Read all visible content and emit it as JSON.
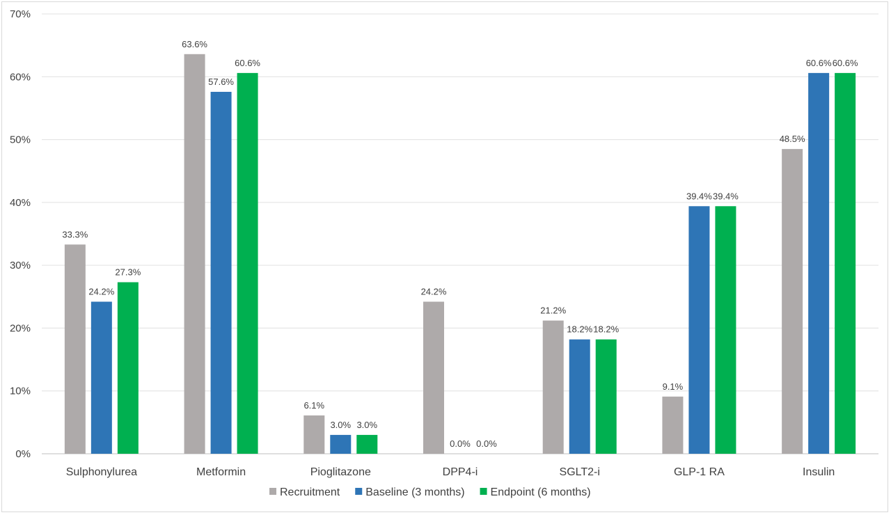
{
  "chart_data": {
    "type": "bar",
    "title": "",
    "xlabel": "",
    "ylabel": "",
    "ylim": [
      0,
      70
    ],
    "y_ticks": [
      "0%",
      "10%",
      "20%",
      "30%",
      "40%",
      "50%",
      "60%",
      "70%"
    ],
    "y_tick_values": [
      0,
      10,
      20,
      30,
      40,
      50,
      60,
      70
    ],
    "grid": true,
    "legend_position": "bottom",
    "categories": [
      "Sulphonylurea",
      "Metformin",
      "Pioglitazone",
      "DPP4-i",
      "SGLT2-i",
      "GLP-1 RA",
      "Insulin"
    ],
    "series": [
      {
        "name": "Recruitment",
        "color": "#aeaaaa",
        "values": [
          33.3,
          63.6,
          6.1,
          24.2,
          21.2,
          9.1,
          48.5
        ],
        "labels": [
          "33.3%",
          "63.6%",
          "6.1%",
          "24.2%",
          "21.2%",
          "9.1%",
          "48.5%"
        ]
      },
      {
        "name": "Baseline (3 months)",
        "color": "#2e75b6",
        "values": [
          24.2,
          57.6,
          3.0,
          0.0,
          18.2,
          39.4,
          60.6
        ],
        "labels": [
          "24.2%",
          "57.6%",
          "3.0%",
          "0.0%",
          "18.2%",
          "39.4%",
          "60.6%"
        ]
      },
      {
        "name": "Endpoint (6 months)",
        "color": "#00b050",
        "values": [
          27.3,
          60.6,
          3.0,
          0.0,
          18.2,
          39.4,
          60.6
        ],
        "labels": [
          "27.3%",
          "60.6%",
          "3.0%",
          "0.0%",
          "18.2%",
          "39.4%",
          "60.6%"
        ]
      }
    ]
  }
}
